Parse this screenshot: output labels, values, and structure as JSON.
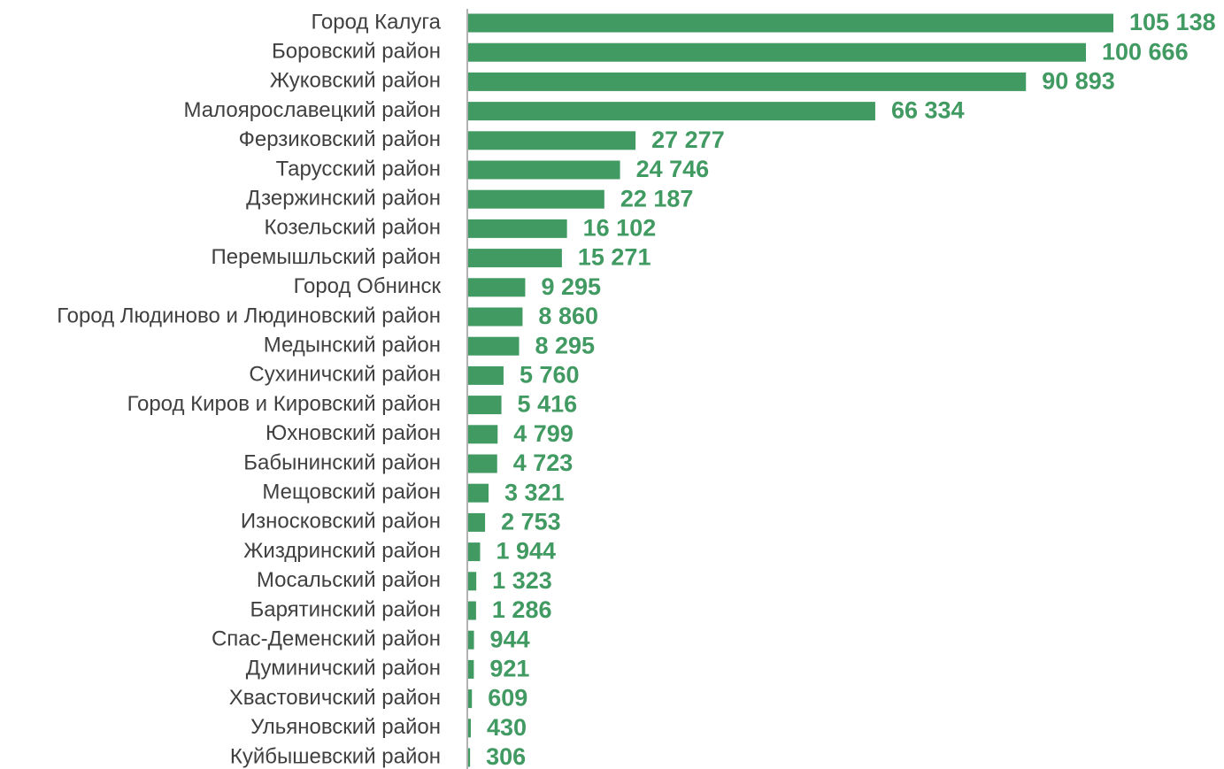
{
  "chart_data": {
    "type": "barh",
    "color": "#419a62",
    "categories": [
      "Город Калуга",
      "Боровский район",
      "Жуковский район",
      "Малоярославецкий район",
      "Ферзиковский район",
      "Тарусский район",
      "Дзержинский район",
      "Козельский район",
      "Перемышльский район",
      "Город Обнинск",
      "Город Людиново и Людиновский район",
      "Медынский район",
      "Сухиничский район",
      "Город Киров и Кировский район",
      "Юхновский район",
      "Бабынинский район",
      "Мещовский район",
      "Износковский район",
      "Жиздринский район",
      "Мосальский район",
      "Барятинский район",
      "Спас-Деменский район",
      "Думиничский район",
      "Хвастовичский район",
      "Ульяновский район",
      "Куйбышевский район"
    ],
    "values": [
      105138,
      100666,
      90893,
      66334,
      27277,
      24746,
      22187,
      16102,
      15271,
      9295,
      8860,
      8295,
      5760,
      5416,
      4799,
      4723,
      3321,
      2753,
      1944,
      1323,
      1286,
      944,
      921,
      609,
      430,
      306
    ],
    "value_labels": [
      "105 138",
      "100 666",
      "90 893",
      "66 334",
      "27 277",
      "24 746",
      "22 187",
      "16 102",
      "15 271",
      "9 295",
      "8 860",
      "8 295",
      "5 760",
      "5 416",
      "4 799",
      "4 723",
      "3 321",
      "2 753",
      "1 944",
      "1 323",
      "1 286",
      "944",
      "921",
      "609",
      "430",
      "306"
    ]
  }
}
